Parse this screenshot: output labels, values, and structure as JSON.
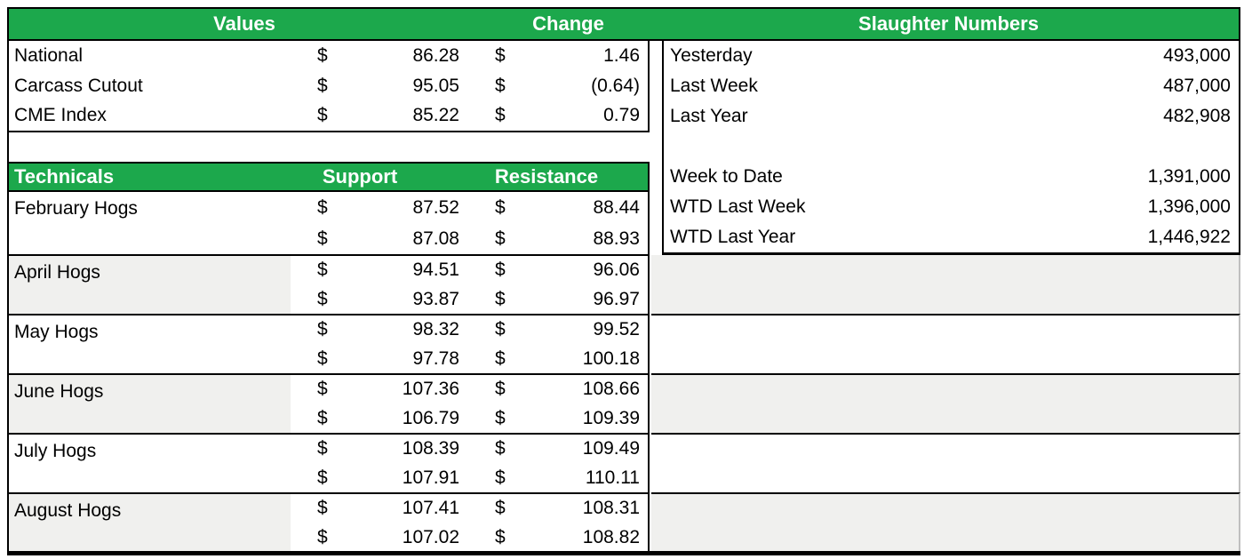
{
  "colors": {
    "header_green": "#1CA84C",
    "row_shade": "#F0F0EE",
    "border_black": "#000000",
    "header_text": "#ffffff"
  },
  "currency_symbol": "$",
  "top_header": {
    "values": "Values",
    "change": "Change",
    "slaughter": "Slaughter Numbers"
  },
  "values_table": {
    "rows": [
      {
        "label": "National",
        "value": "86.28",
        "change": "1.46"
      },
      {
        "label": "Carcass Cutout",
        "value": "95.05",
        "change": "(0.64)"
      },
      {
        "label": "CME Index",
        "value": "85.22",
        "change": "0.79"
      }
    ]
  },
  "technicals_table": {
    "title": "Technicals",
    "support_header": "Support",
    "resistance_header": "Resistance",
    "groups": [
      {
        "label": "February Hogs",
        "shaded": false,
        "rows": [
          {
            "support": "87.52",
            "resistance": "88.44"
          },
          {
            "support": "87.08",
            "resistance": "88.93"
          }
        ]
      },
      {
        "label": "April Hogs",
        "shaded": true,
        "rows": [
          {
            "support": "94.51",
            "resistance": "96.06"
          },
          {
            "support": "93.87",
            "resistance": "96.97"
          }
        ]
      },
      {
        "label": "May Hogs",
        "shaded": false,
        "rows": [
          {
            "support": "98.32",
            "resistance": "99.52"
          },
          {
            "support": "97.78",
            "resistance": "100.18"
          }
        ]
      },
      {
        "label": "June Hogs",
        "shaded": true,
        "rows": [
          {
            "support": "107.36",
            "resistance": "108.66"
          },
          {
            "support": "106.79",
            "resistance": "109.39"
          }
        ]
      },
      {
        "label": "July Hogs",
        "shaded": false,
        "rows": [
          {
            "support": "108.39",
            "resistance": "109.49"
          },
          {
            "support": "107.91",
            "resistance": "110.11"
          }
        ]
      },
      {
        "label": "August Hogs",
        "shaded": true,
        "rows": [
          {
            "support": "107.41",
            "resistance": "108.31"
          },
          {
            "support": "107.02",
            "resistance": "108.82"
          }
        ]
      }
    ]
  },
  "slaughter_table": {
    "rows": [
      {
        "label": "Yesterday",
        "value": "493,000"
      },
      {
        "label": "Last Week",
        "value": "487,000"
      },
      {
        "label": "Last Year",
        "value": "482,908"
      },
      {
        "label": "",
        "value": ""
      },
      {
        "label": "Week to Date",
        "value": "1,391,000"
      },
      {
        "label": "WTD Last Week",
        "value": "1,396,000"
      },
      {
        "label": "WTD Last Year",
        "value": "1,446,922"
      }
    ]
  }
}
